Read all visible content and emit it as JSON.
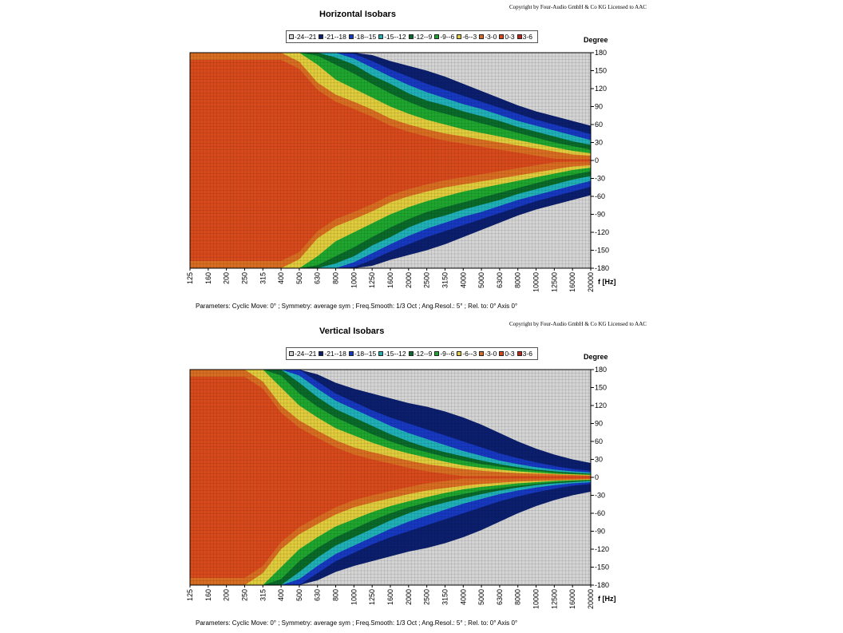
{
  "chart_data": [
    {
      "type": "heatmap",
      "copyright": "Copyright by Four-Audio GmbH & Co KG   Licensed to AAC",
      "title": "Horizontal Isobars",
      "xlabel": "f [Hz]",
      "ylabel": "Degree",
      "x_scale": "log",
      "x_ticks": [
        "125",
        "160",
        "200",
        "250",
        "315",
        "400",
        "500",
        "630",
        "800",
        "1000",
        "1250",
        "1600",
        "2000",
        "2500",
        "3150",
        "4000",
        "5000",
        "6300",
        "8000",
        "10000",
        "12500",
        "16000",
        "20000"
      ],
      "y_ticks": [
        180,
        150,
        120,
        90,
        60,
        30,
        0,
        -30,
        -60,
        -90,
        -120,
        -150,
        -180
      ],
      "ylim": [
        -180,
        180
      ],
      "legend": [
        {
          "label": "-24--21",
          "color": "#d4d4d4"
        },
        {
          "label": "-21--18",
          "color": "#0b1f6e"
        },
        {
          "label": "-18--15",
          "color": "#1738c0"
        },
        {
          "label": "-15--12",
          "color": "#20b0b8"
        },
        {
          "label": "-12--9",
          "color": "#0a6a2a"
        },
        {
          "label": "-9--6",
          "color": "#1fa62e"
        },
        {
          "label": "-6--3",
          "color": "#e0cc3c"
        },
        {
          "label": "-3-0",
          "color": "#d96e22"
        },
        {
          "label": "0-3",
          "color": "#d84a1c"
        },
        {
          "label": "3-6",
          "color": "#c12818"
        }
      ],
      "contour_angles_deg": {
        "freq_hz": [
          125,
          160,
          200,
          250,
          315,
          400,
          500,
          630,
          800,
          1000,
          1250,
          1600,
          2000,
          2500,
          3150,
          4000,
          5000,
          6300,
          8000,
          10000,
          12500,
          16000,
          20000
        ],
        "-3": [
          180,
          180,
          180,
          180,
          180,
          180,
          165,
          130,
          110,
          98,
          85,
          70,
          60,
          52,
          45,
          40,
          35,
          30,
          25,
          20,
          15,
          10,
          8
        ],
        "-6": [
          180,
          180,
          180,
          180,
          180,
          180,
          180,
          160,
          135,
          120,
          105,
          90,
          78,
          68,
          60,
          52,
          46,
          40,
          34,
          28,
          22,
          16,
          12
        ],
        "-9": [
          180,
          180,
          180,
          180,
          180,
          180,
          180,
          175,
          160,
          145,
          128,
          112,
          98,
          86,
          78,
          70,
          62,
          54,
          46,
          38,
          30,
          24,
          18
        ],
        "-12": [
          180,
          180,
          180,
          180,
          180,
          180,
          180,
          180,
          172,
          160,
          142,
          128,
          112,
          100,
          92,
          82,
          74,
          66,
          56,
          48,
          40,
          32,
          26
        ],
        "-15": [
          180,
          180,
          180,
          180,
          180,
          180,
          180,
          180,
          180,
          170,
          155,
          140,
          126,
          114,
          104,
          94,
          86,
          76,
          66,
          58,
          50,
          42,
          34
        ],
        "-18": [
          180,
          180,
          180,
          180,
          180,
          180,
          180,
          180,
          180,
          178,
          166,
          152,
          140,
          128,
          118,
          108,
          98,
          88,
          78,
          68,
          60,
          52,
          44
        ],
        "-21": [
          180,
          180,
          180,
          180,
          180,
          180,
          180,
          180,
          180,
          180,
          176,
          166,
          158,
          150,
          140,
          128,
          116,
          104,
          92,
          82,
          74,
          66,
          58
        ]
      },
      "parameters": "Parameters:   Cyclic Move:  0°   ;   Symmetry:  average sym   ;   Freq.Smooth:  1/3   Oct   ;   Ang.Resol.:  5°   ;   Rel. to:  0° Axis    0°"
    },
    {
      "type": "heatmap",
      "copyright": "Copyright by Four-Audio GmbH & Co KG   Licensed to AAC",
      "title": "Vertical Isobars",
      "xlabel": "f [Hz]",
      "ylabel": "Degree",
      "x_scale": "log",
      "x_ticks": [
        "125",
        "160",
        "200",
        "250",
        "315",
        "400",
        "500",
        "630",
        "800",
        "1000",
        "1250",
        "1600",
        "2000",
        "2500",
        "3150",
        "4000",
        "5000",
        "6300",
        "8000",
        "10000",
        "12500",
        "16000",
        "20000"
      ],
      "y_ticks": [
        180,
        150,
        120,
        90,
        60,
        30,
        0,
        -30,
        -60,
        -90,
        -120,
        -150,
        -180
      ],
      "ylim": [
        -180,
        180
      ],
      "legend": [
        {
          "label": "-24--21",
          "color": "#d4d4d4"
        },
        {
          "label": "-21--18",
          "color": "#0b1f6e"
        },
        {
          "label": "-18--15",
          "color": "#1738c0"
        },
        {
          "label": "-15--12",
          "color": "#20b0b8"
        },
        {
          "label": "-12--9",
          "color": "#0a6a2a"
        },
        {
          "label": "-9--6",
          "color": "#1fa62e"
        },
        {
          "label": "-6--3",
          "color": "#e0cc3c"
        },
        {
          "label": "-3-0",
          "color": "#d96e22"
        },
        {
          "label": "0-3",
          "color": "#d84a1c"
        },
        {
          "label": "3-6",
          "color": "#c12818"
        }
      ],
      "contour_angles_deg": {
        "freq_hz": [
          125,
          160,
          200,
          250,
          315,
          400,
          500,
          630,
          800,
          1000,
          1250,
          1600,
          2000,
          2500,
          3150,
          4000,
          5000,
          6300,
          8000,
          10000,
          12500,
          16000,
          20000
        ],
        "-3": [
          180,
          180,
          180,
          180,
          160,
          120,
          95,
          78,
          62,
          50,
          42,
          35,
          28,
          22,
          18,
          14,
          11,
          9,
          7,
          6,
          5,
          4,
          3
        ],
        "-6": [
          180,
          180,
          180,
          180,
          180,
          150,
          120,
          100,
          82,
          70,
          58,
          48,
          40,
          33,
          26,
          20,
          16,
          13,
          10,
          8,
          6,
          5,
          4
        ],
        "-9": [
          180,
          180,
          180,
          180,
          180,
          170,
          140,
          118,
          100,
          86,
          72,
          60,
          50,
          42,
          34,
          28,
          22,
          18,
          14,
          11,
          8,
          6,
          5
        ],
        "-12": [
          180,
          180,
          180,
          180,
          180,
          180,
          158,
          134,
          114,
          100,
          86,
          72,
          60,
          50,
          42,
          35,
          28,
          22,
          17,
          13,
          10,
          8,
          6
        ],
        "-15": [
          180,
          180,
          180,
          180,
          180,
          180,
          170,
          148,
          128,
          114,
          100,
          86,
          74,
          64,
          54,
          44,
          36,
          28,
          22,
          17,
          13,
          10,
          8
        ],
        "-18": [
          180,
          180,
          180,
          180,
          180,
          180,
          180,
          160,
          140,
          126,
          112,
          100,
          90,
          80,
          70,
          60,
          50,
          40,
          32,
          25,
          19,
          14,
          11
        ],
        "-21": [
          180,
          180,
          180,
          180,
          180,
          180,
          180,
          172,
          158,
          148,
          140,
          132,
          124,
          118,
          110,
          100,
          88,
          74,
          60,
          48,
          38,
          30,
          24
        ]
      },
      "parameters": "Parameters:   Cyclic Move:  0°   ;   Symmetry:  average sym   ;   Freq.Smooth:  1/3   Oct   ;   Ang.Resol.:  5°   ;   Rel. to:  0° Axis    0°"
    }
  ]
}
